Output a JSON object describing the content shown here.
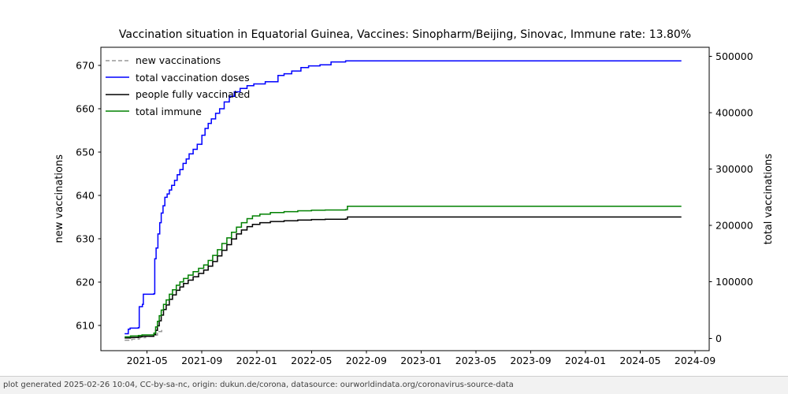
{
  "footer": {
    "text": "plot generated 2025-02-26 10:04, CC-by-sa-nc, origin: dukun.de/corona, datasource: ourworldindata.org/coronavirus-source-data"
  },
  "chart_data": {
    "type": "line",
    "title": "Vaccination situation in Equatorial Guinea, Vaccines: Sinopharm/Beijing, Sinovac, Immune rate: 13.80%",
    "grid": false,
    "legend_position": "upper left",
    "left_axis": {
      "label": "new vaccinations",
      "ticks": [
        610,
        620,
        630,
        640,
        650,
        660,
        670
      ],
      "range": [
        604.2,
        674.2
      ]
    },
    "right_axis": {
      "label": "total vaccinations",
      "ticks": [
        0,
        100000,
        200000,
        300000,
        400000,
        500000
      ],
      "range": [
        -22000,
        516000
      ]
    },
    "x_axis": {
      "ticks": [
        "2021-05",
        "2021-09",
        "2022-01",
        "2022-05",
        "2022-09",
        "2023-01",
        "2023-05",
        "2023-09",
        "2024-01",
        "2024-05",
        "2024-09"
      ],
      "range": [
        "2021-01-20",
        "2024-10-02"
      ]
    },
    "series": [
      {
        "name": "new vaccinations",
        "color": "#999999",
        "dash": "dashed",
        "axis": "left",
        "points": [
          [
            "2021-03-12",
            606.6
          ],
          [
            "2021-03-28",
            606.9
          ],
          [
            "2021-04-14",
            607.2
          ],
          [
            "2021-04-28",
            607.5
          ],
          [
            "2021-05-14",
            607.8
          ],
          [
            "2021-05-24",
            608.6
          ],
          [
            "2021-06-03",
            609.2
          ]
        ]
      },
      {
        "name": "total vaccination doses",
        "color": "#0000ff",
        "dash": "solid",
        "axis": "right",
        "points": [
          [
            "2021-03-12",
            8000
          ],
          [
            "2021-03-20",
            16000
          ],
          [
            "2021-03-24",
            18000
          ],
          [
            "2021-04-12",
            19000
          ],
          [
            "2021-04-14",
            56000
          ],
          [
            "2021-04-21",
            60000
          ],
          [
            "2021-04-23",
            78000
          ],
          [
            "2021-05-16",
            79000
          ],
          [
            "2021-05-18",
            141000
          ],
          [
            "2021-05-21",
            160000
          ],
          [
            "2021-05-25",
            185000
          ],
          [
            "2021-05-29",
            205000
          ],
          [
            "2021-06-02",
            222000
          ],
          [
            "2021-06-06",
            235000
          ],
          [
            "2021-06-10",
            250000
          ],
          [
            "2021-06-15",
            256000
          ],
          [
            "2021-06-20",
            263000
          ],
          [
            "2021-06-25",
            271000
          ],
          [
            "2021-07-01",
            280000
          ],
          [
            "2021-07-07",
            290000
          ],
          [
            "2021-07-13",
            299000
          ],
          [
            "2021-07-20",
            310000
          ],
          [
            "2021-07-27",
            318000
          ],
          [
            "2021-08-03",
            327000
          ],
          [
            "2021-08-12",
            335000
          ],
          [
            "2021-08-21",
            344000
          ],
          [
            "2021-09-01",
            360000
          ],
          [
            "2021-09-08",
            372000
          ],
          [
            "2021-09-15",
            381000
          ],
          [
            "2021-09-22",
            389000
          ],
          [
            "2021-10-01",
            399000
          ],
          [
            "2021-10-10",
            407000
          ],
          [
            "2021-10-20",
            419000
          ],
          [
            "2021-11-01",
            429000
          ],
          [
            "2021-11-12",
            437000
          ],
          [
            "2021-11-25",
            443000
          ],
          [
            "2021-12-10",
            448000
          ],
          [
            "2021-12-25",
            451000
          ],
          [
            "2022-01-20",
            455000
          ],
          [
            "2022-02-18",
            466000
          ],
          [
            "2022-03-01",
            469000
          ],
          [
            "2022-03-18",
            474000
          ],
          [
            "2022-04-08",
            480000
          ],
          [
            "2022-04-25",
            483000
          ],
          [
            "2022-05-20",
            485000
          ],
          [
            "2022-06-14",
            490000
          ],
          [
            "2022-07-16",
            492000
          ],
          [
            "2024-08-01",
            492000
          ]
        ]
      },
      {
        "name": "people fully vaccinated",
        "color": "#000000",
        "dash": "solid",
        "axis": "right",
        "points": [
          [
            "2021-03-12",
            500
          ],
          [
            "2021-03-25",
            1500
          ],
          [
            "2021-04-12",
            2500
          ],
          [
            "2021-04-20",
            3500
          ],
          [
            "2021-05-16",
            6500
          ],
          [
            "2021-05-20",
            14000
          ],
          [
            "2021-05-24",
            22000
          ],
          [
            "2021-05-28",
            31000
          ],
          [
            "2021-06-02",
            41000
          ],
          [
            "2021-06-07",
            51000
          ],
          [
            "2021-06-13",
            59000
          ],
          [
            "2021-06-20",
            69000
          ],
          [
            "2021-06-27",
            77000
          ],
          [
            "2021-07-05",
            85000
          ],
          [
            "2021-07-13",
            91000
          ],
          [
            "2021-07-21",
            97000
          ],
          [
            "2021-08-01",
            103000
          ],
          [
            "2021-08-12",
            109000
          ],
          [
            "2021-08-24",
            115000
          ],
          [
            "2021-09-05",
            121000
          ],
          [
            "2021-09-15",
            128000
          ],
          [
            "2021-09-25",
            136000
          ],
          [
            "2021-10-05",
            146000
          ],
          [
            "2021-10-15",
            156000
          ],
          [
            "2021-10-26",
            166000
          ],
          [
            "2021-11-06",
            176000
          ],
          [
            "2021-11-17",
            185000
          ],
          [
            "2021-11-28",
            192000
          ],
          [
            "2021-12-10",
            198000
          ],
          [
            "2021-12-22",
            202000
          ],
          [
            "2022-01-08",
            205000
          ],
          [
            "2022-02-01",
            207000
          ],
          [
            "2022-03-01",
            208500
          ],
          [
            "2022-04-01",
            209500
          ],
          [
            "2022-05-01",
            210500
          ],
          [
            "2022-06-01",
            211000
          ],
          [
            "2022-07-16",
            211500
          ],
          [
            "2022-07-20",
            215000
          ],
          [
            "2024-08-01",
            215000
          ]
        ]
      },
      {
        "name": "total immune",
        "color": "#008000",
        "dash": "solid",
        "axis": "right",
        "points": [
          [
            "2021-03-12",
            2500
          ],
          [
            "2021-03-25",
            4000
          ],
          [
            "2021-04-12",
            5000
          ],
          [
            "2021-04-20",
            6000
          ],
          [
            "2021-05-16",
            9000
          ],
          [
            "2021-05-20",
            20000
          ],
          [
            "2021-05-24",
            30000
          ],
          [
            "2021-05-28",
            40000
          ],
          [
            "2021-06-02",
            50000
          ],
          [
            "2021-06-07",
            60000
          ],
          [
            "2021-06-13",
            68000
          ],
          [
            "2021-06-20",
            78000
          ],
          [
            "2021-06-27",
            86000
          ],
          [
            "2021-07-05",
            94000
          ],
          [
            "2021-07-13",
            100000
          ],
          [
            "2021-07-21",
            106000
          ],
          [
            "2021-08-01",
            112000
          ],
          [
            "2021-08-12",
            118000
          ],
          [
            "2021-08-24",
            124000
          ],
          [
            "2021-09-05",
            130000
          ],
          [
            "2021-09-15",
            138000
          ],
          [
            "2021-09-25",
            147000
          ],
          [
            "2021-10-05",
            157000
          ],
          [
            "2021-10-15",
            168000
          ],
          [
            "2021-10-26",
            178000
          ],
          [
            "2021-11-06",
            188000
          ],
          [
            "2021-11-17",
            197000
          ],
          [
            "2021-11-28",
            205000
          ],
          [
            "2021-12-10",
            212000
          ],
          [
            "2021-12-22",
            217000
          ],
          [
            "2022-01-08",
            220000
          ],
          [
            "2022-02-01",
            223000
          ],
          [
            "2022-03-01",
            224500
          ],
          [
            "2022-04-01",
            226000
          ],
          [
            "2022-05-01",
            227000
          ],
          [
            "2022-06-01",
            227500
          ],
          [
            "2022-07-16",
            228000
          ],
          [
            "2022-07-20",
            234000
          ],
          [
            "2024-08-01",
            234000
          ]
        ]
      }
    ]
  }
}
